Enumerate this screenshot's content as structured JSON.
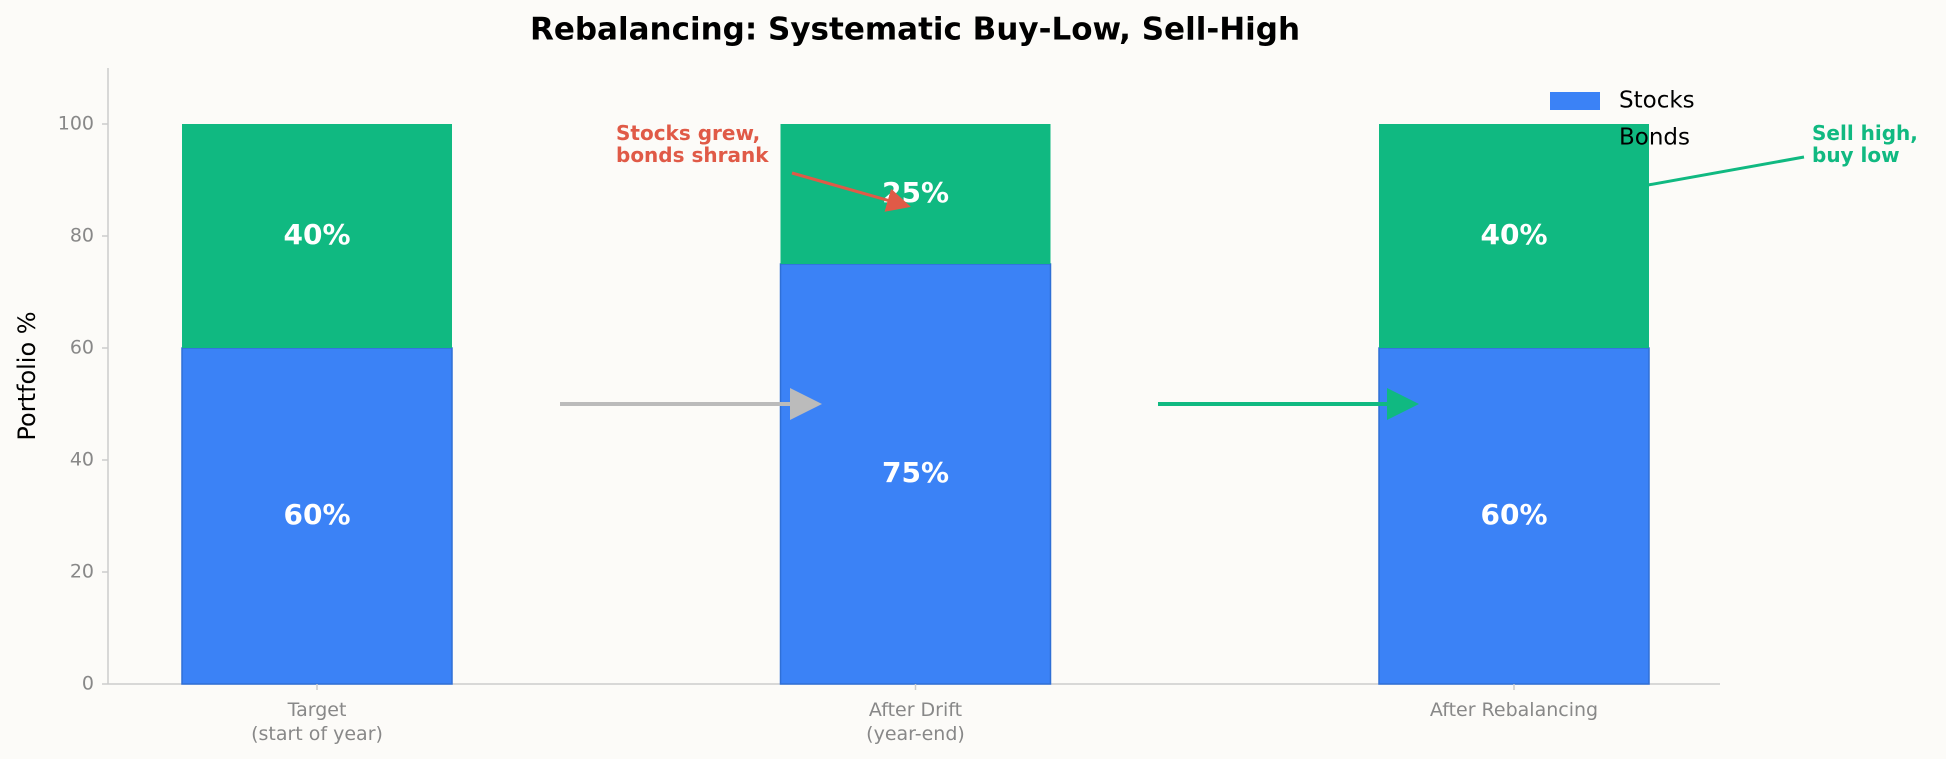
{
  "chart_data": {
    "type": "bar",
    "stacked": true,
    "title": "Rebalancing: Systematic Buy-Low, Sell-High",
    "y_label": "Portfolio %",
    "categories": [
      "Target\n(start of year)",
      "After Drift\n(year-end)",
      "After Rebalancing"
    ],
    "series": [
      {
        "name": "Stocks",
        "color": "#3b82f6",
        "values": [
          60,
          75,
          60
        ],
        "value_labels": [
          "60%",
          "75%",
          "60%"
        ]
      },
      {
        "name": "Bonds",
        "color": "#10b981",
        "values": [
          40,
          25,
          40
        ],
        "value_labels": [
          "40%",
          "25%",
          "40%"
        ]
      }
    ],
    "ylim": [
      0,
      110
    ],
    "yticks": [
      0,
      20,
      40,
      60,
      80,
      100
    ],
    "legend": "upper right",
    "annotations": [
      {
        "text": "Stocks grew,\nbonds shrank",
        "color": "#e05a47"
      },
      {
        "text": "Sell high,\nbuy low",
        "color": "#10b981"
      }
    ]
  }
}
